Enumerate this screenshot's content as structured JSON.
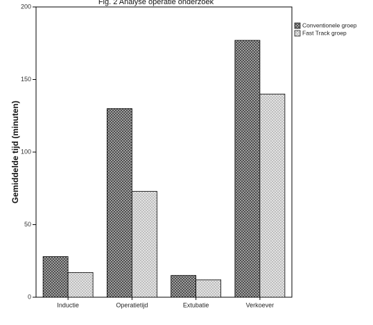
{
  "chart_data": {
    "type": "bar",
    "title": "Fig. 2 Analyse operatie onderzoek",
    "xlabel": "",
    "ylabel": "Gemiddelde tijd (minuten)",
    "categories": [
      "Inductie",
      "Operatietijd",
      "Extubatie",
      "Verkoever"
    ],
    "series": [
      {
        "name": "Conventionele groep",
        "values": [
          28,
          130,
          15,
          177
        ]
      },
      {
        "name": "Fast Track groep",
        "values": [
          17,
          73,
          12,
          140
        ]
      }
    ],
    "ylim": [
      0,
      200
    ],
    "yticks": [
      0,
      50,
      100,
      150,
      200
    ],
    "grid": false,
    "legend": "top-right"
  }
}
